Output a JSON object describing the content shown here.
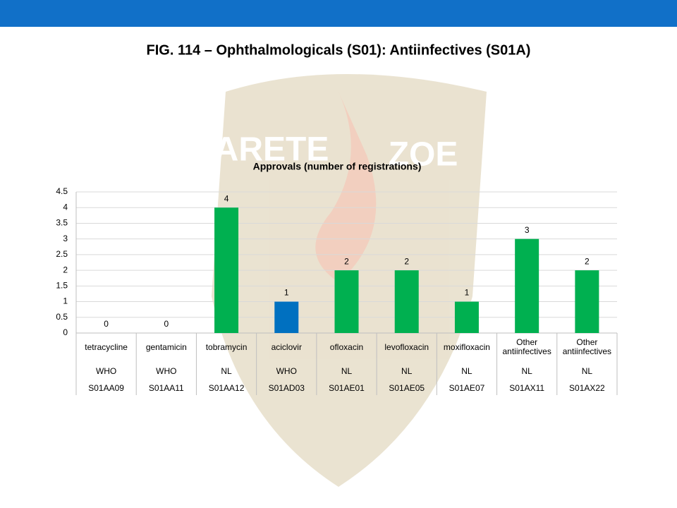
{
  "slide_title": "FIG. 114 – Ophthalmologicals (S01): Antiinfectives (S01A)",
  "watermark": [
    "ARETE",
    "ZOE"
  ],
  "chart_data": {
    "type": "bar",
    "title": "Approvals (number of registrations)",
    "categories": [
      "tetracycline",
      "gentamicin",
      "tobramycin",
      "aciclovir",
      "ofloxacin",
      "levofloxacin",
      "moxifloxacin",
      "Other antiinfectives",
      "Other antiinfectives"
    ],
    "sources": [
      "WHO",
      "WHO",
      "NL",
      "WHO",
      "NL",
      "NL",
      "NL",
      "NL",
      "NL"
    ],
    "codes": [
      "S01AA09",
      "S01AA11",
      "S01AA12",
      "S01AD03",
      "S01AE01",
      "S01AE05",
      "S01AE07",
      "S01AX11",
      "S01AX22"
    ],
    "values": [
      0,
      0,
      4,
      1,
      2,
      2,
      1,
      3,
      2
    ],
    "colors": [
      "#00b050",
      "#00b050",
      "#00b050",
      "#0070c0",
      "#00b050",
      "#00b050",
      "#00b050",
      "#00b050",
      "#00b050"
    ],
    "ylim": [
      0,
      4.5
    ],
    "yticks": [
      0,
      0.5,
      1,
      1.5,
      2,
      2.5,
      3,
      3.5,
      4,
      4.5
    ],
    "grid": true
  }
}
